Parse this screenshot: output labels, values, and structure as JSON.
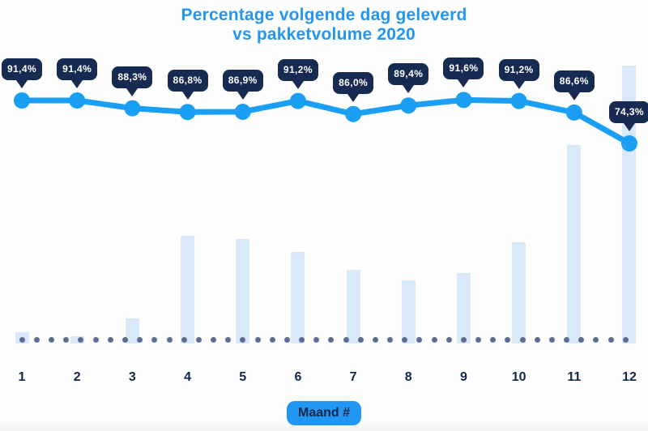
{
  "chart": {
    "title_line1": "Percentage volgende dag geleverd",
    "title_line2": "vs pakketvolume 2020",
    "xlabel": "Maand #"
  },
  "colors": {
    "accent_blue": "#2296f3",
    "line_blue": "#1a9ff4",
    "tooltip_navy": "#172a52",
    "bar_light_blue": "#d9e9f9",
    "baseline_dot_slate": "#5b6e94",
    "tick_navy": "#13274b",
    "tooltip_text": "#ffffff"
  },
  "chart_data": {
    "type": "line",
    "title": "Percentage volgende dag geleverd vs pakketvolume 2020",
    "xlabel": "Maand #",
    "categories": [
      "1",
      "2",
      "3",
      "4",
      "5",
      "6",
      "7",
      "8",
      "9",
      "10",
      "11",
      "12"
    ],
    "series": [
      {
        "name": "Percentage volgende dag geleverd",
        "type": "line",
        "values": [
          91.4,
          91.4,
          88.3,
          86.8,
          86.9,
          91.2,
          86.0,
          89.4,
          91.6,
          91.2,
          86.6,
          74.3
        ],
        "labels": [
          "91,4%",
          "91,4%",
          "88,3%",
          "86,8%",
          "86,9%",
          "91,2%",
          "86,0%",
          "89,4%",
          "91,6%",
          "91,2%",
          "86,6%",
          "74,3%"
        ]
      },
      {
        "name": "Pakketvolume 2020",
        "type": "bar",
        "unit": "relatief t.o.v. maximum (%), afgelezen uit grafiek",
        "values": [
          4.1,
          2.6,
          9.0,
          38.8,
          37.6,
          32.9,
          26.5,
          22.7,
          25.4,
          36.4,
          71.4,
          100
        ]
      }
    ],
    "legend": false,
    "grid": false,
    "y_axis_visible": false,
    "baseline_dotted": true
  }
}
